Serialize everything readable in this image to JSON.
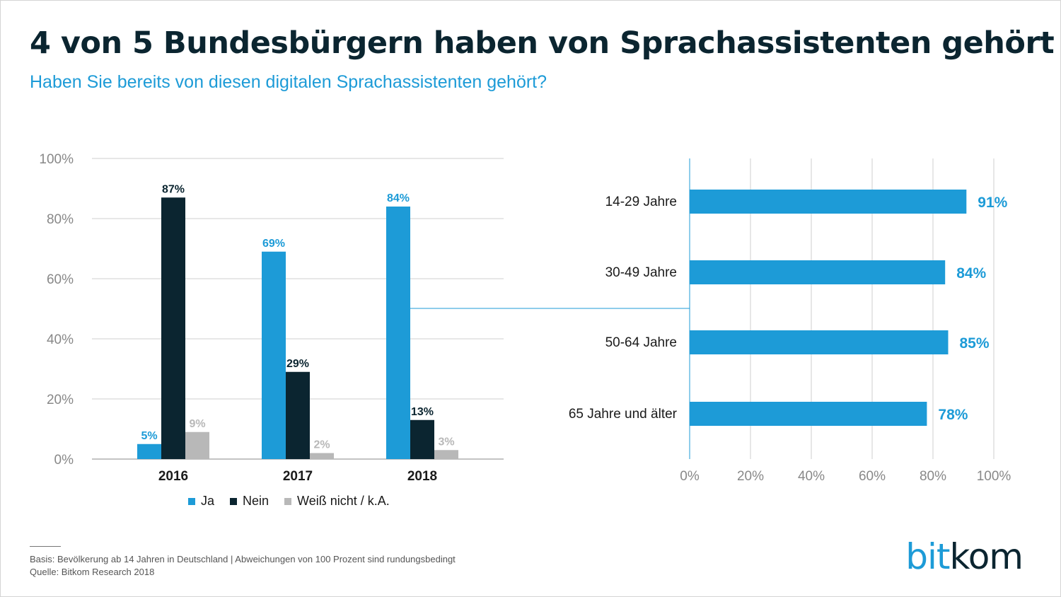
{
  "title": "4 von 5 Bundesbürgern haben von Sprachassistenten gehört",
  "subtitle": "Haben Sie bereits von diesen digitalen Sprachassistenten gehört?",
  "colors": {
    "ja": "#1d9bd7",
    "nein": "#0b2530",
    "weiss": "#b8b8b8",
    "grid": "#cfcfcf",
    "axis": "#888888",
    "tick": "#888888"
  },
  "chart_data": [
    {
      "type": "bar",
      "title": "",
      "categories": [
        "2016",
        "2017",
        "2018"
      ],
      "series": [
        {
          "name": "Ja",
          "values": [
            5,
            69,
            84
          ],
          "labels": [
            "5%",
            "69%",
            "84%"
          ]
        },
        {
          "name": "Nein",
          "values": [
            87,
            29,
            13
          ],
          "labels": [
            "87%",
            "29%",
            "13%"
          ]
        },
        {
          "name": "Weiß nicht / k.A.",
          "values": [
            9,
            2,
            3
          ],
          "labels": [
            "9%",
            "2%",
            "3%"
          ]
        }
      ],
      "ylim": [
        0,
        100
      ],
      "yticks": [
        "0%",
        "20%",
        "40%",
        "60%",
        "80%",
        "100%"
      ],
      "xlabel": "",
      "ylabel": "",
      "grid": true,
      "legend": "bottom"
    },
    {
      "type": "bar",
      "orientation": "horizontal",
      "title": "",
      "categories": [
        "14-29 Jahre",
        "30-49 Jahre",
        "50-64 Jahre",
        "65 Jahre und älter"
      ],
      "values": [
        91,
        84,
        85,
        78
      ],
      "labels": [
        "91%",
        "84%",
        "85%",
        "78%"
      ],
      "xlim": [
        0,
        100
      ],
      "xticks": [
        "0%",
        "20%",
        "40%",
        "60%",
        "80%",
        "100%"
      ],
      "grid": true
    }
  ],
  "legend": {
    "ja": "Ja",
    "nein": "Nein",
    "weiss": "Weiß nicht / k.A."
  },
  "footnote": {
    "basis": "Basis: Bevölkerung ab 14 Jahren in Deutschland | Abweichungen von 100 Prozent sind rundungsbedingt",
    "quelle": "Quelle: Bitkom Research 2018"
  },
  "logo": {
    "part1": "bit",
    "part2": "kom"
  }
}
